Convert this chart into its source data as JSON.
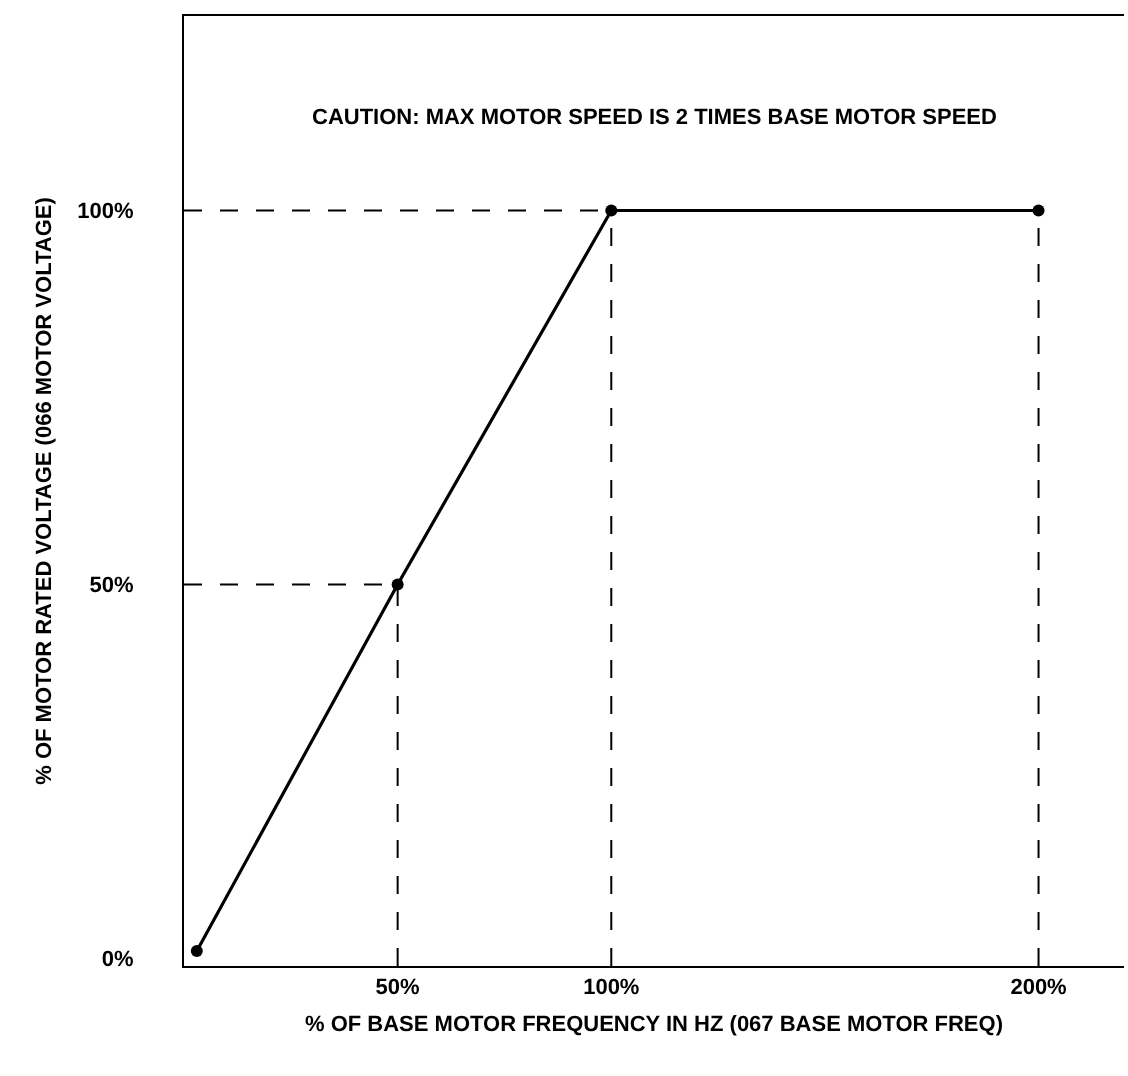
{
  "chart_data": {
    "type": "line",
    "xlabel": "% OF BASE MOTOR FREQUENCY IN HZ (067 BASE MOTOR FREQ)",
    "ylabel": "% OF MOTOR RATED VOLTAGE (066 MOTOR VOLTAGE)",
    "x": [
      3,
      50,
      100,
      200
    ],
    "series": [
      {
        "color": "#000000",
        "values": [
          1,
          50,
          100,
          100
        ]
      }
    ],
    "marker": "circle",
    "xlim": [
      0,
      220
    ],
    "ylim": [
      -1,
      126
    ],
    "xticks": [
      {
        "value": 50,
        "label": "50%"
      },
      {
        "value": 100,
        "label": "100%"
      },
      {
        "value": 200,
        "label": "200%"
      }
    ],
    "yticks": [
      {
        "value": 0,
        "label": "0%"
      },
      {
        "value": 50,
        "label": "50%"
      },
      {
        "value": 100,
        "label": "100%"
      }
    ],
    "ref_lines": [
      {
        "axis": "y",
        "value": 50,
        "line_style": "dashed"
      },
      {
        "axis": "y",
        "value": 100,
        "line_style": "dashed"
      },
      {
        "axis": "x",
        "value": 50,
        "line_style": "dashed"
      },
      {
        "axis": "x",
        "value": 100,
        "line_style": "dashed"
      },
      {
        "axis": "x",
        "value": 200,
        "line_style": "dashed"
      }
    ],
    "annotations": [
      "CAUTION: MAX MOTOR SPEED IS 2 TIMES BASE MOTOR SPEED"
    ],
    "line_style": "solid"
  }
}
